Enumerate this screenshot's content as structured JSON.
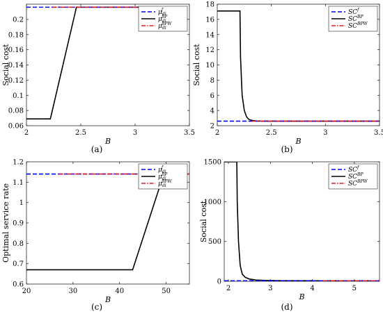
{
  "chart_data": [
    {
      "type": "line",
      "panel_label": "(a)",
      "xlabel": "B",
      "ylabel": "Social cost",
      "xlim": [
        2,
        3.5
      ],
      "ylim": [
        0.06,
        0.22
      ],
      "xticks": [
        2,
        2.5,
        3,
        3.5
      ],
      "yticks": [
        0.06,
        0.08,
        0.1,
        0.12,
        0.14,
        0.16,
        0.18,
        0.2
      ],
      "legend_position": "top-right",
      "series": [
        {
          "name": "μ_di^f",
          "label_base": "μ",
          "label_sub": "di",
          "label_sup": "f",
          "color": "#0000ff",
          "style": "dashed",
          "x": [
            2,
            3.45
          ],
          "y": [
            0.216,
            0.216
          ]
        },
        {
          "name": "μ_di^BP",
          "label_base": "μ",
          "label_sub": "di",
          "label_sup": "BP",
          "color": "#000000",
          "style": "solid",
          "x": [
            2,
            2.22,
            2.46,
            3.45
          ],
          "y": [
            0.069,
            0.069,
            0.216,
            0.216
          ]
        },
        {
          "name": "μ_di^BPW",
          "label_base": "μ",
          "label_sub": "di",
          "label_sup": "BPW",
          "color": "#e41a1c",
          "style": "dashdot",
          "x": [
            2.24,
            3.45
          ],
          "y": [
            0.216,
            0.216
          ]
        }
      ]
    },
    {
      "type": "line",
      "panel_label": "(b)",
      "xlabel": "B",
      "ylabel": "Social cost",
      "xlim": [
        2,
        3.5
      ],
      "ylim": [
        2,
        18
      ],
      "xticks": [
        2,
        2.5,
        3,
        3.5
      ],
      "yticks": [
        2,
        4,
        6,
        8,
        10,
        12,
        14,
        16,
        18
      ],
      "legend_position": "top-right",
      "series": [
        {
          "name": "SC^f",
          "label_base": "SC",
          "label_sub": "",
          "label_sup": "f",
          "color": "#0000ff",
          "style": "dashed",
          "x": [
            2,
            3.5
          ],
          "y": [
            2.6,
            2.6
          ]
        },
        {
          "name": "SC^BP",
          "label_base": "SC",
          "label_sub": "",
          "label_sup": "BP",
          "color": "#000000",
          "style": "solid",
          "x": [
            2,
            2.21,
            2.215,
            2.23,
            2.25,
            2.27,
            2.29,
            2.32,
            2.36,
            2.45,
            3.5
          ],
          "y": [
            17.1,
            17.1,
            11.0,
            6.0,
            4.0,
            3.2,
            2.85,
            2.7,
            2.62,
            2.6,
            2.6
          ]
        },
        {
          "name": "SC^BPW",
          "label_base": "SC",
          "label_sub": "",
          "label_sup": "BPW",
          "color": "#e41a1c",
          "style": "dashdot",
          "x": [
            2.32,
            3.5
          ],
          "y": [
            2.6,
            2.6
          ]
        }
      ]
    },
    {
      "type": "line",
      "panel_label": "(c)",
      "xlabel": "B",
      "ylabel": "Optimal service rate",
      "xlim": [
        20,
        55
      ],
      "ylim": [
        0.6,
        1.2
      ],
      "xticks": [
        20,
        30,
        40,
        50
      ],
      "yticks": [
        0.6,
        0.7,
        0.8,
        0.9,
        1,
        1.1,
        1.2
      ],
      "legend_position": "top-right",
      "series": [
        {
          "name": "μ_di^f",
          "label_base": "μ",
          "label_sub": "di",
          "label_sup": "f",
          "color": "#0000ff",
          "style": "dashed",
          "x": [
            20,
            55
          ],
          "y": [
            1.14,
            1.14
          ]
        },
        {
          "name": "μ_di^BP",
          "label_base": "μ",
          "label_sub": "di",
          "label_sup": "BP",
          "color": "#000000",
          "style": "solid",
          "x": [
            20,
            42.8,
            49.5,
            55
          ],
          "y": [
            0.67,
            0.67,
            1.14,
            1.14
          ]
        },
        {
          "name": "μ_di^BPW",
          "label_base": "μ",
          "label_sub": "di",
          "label_sup": "BPW",
          "color": "#e41a1c",
          "style": "dashdot",
          "x": [
            27,
            55
          ],
          "y": [
            1.14,
            1.14
          ]
        }
      ]
    },
    {
      "type": "line",
      "panel_label": "(d)",
      "xlabel": "B",
      "ylabel": "Social cost",
      "xlim": [
        1.9,
        5.6
      ],
      "ylim": [
        0,
        1500
      ],
      "xticks": [
        2,
        3,
        4,
        5
      ],
      "yticks": [
        0,
        500,
        1000,
        1500
      ],
      "legend_position": "top-right",
      "series": [
        {
          "name": "SC^f",
          "label_base": "SC",
          "label_sub": "",
          "label_sup": "f",
          "color": "#0000ff",
          "style": "dashed",
          "x": [
            1.9,
            5.6
          ],
          "y": [
            6,
            6
          ]
        },
        {
          "name": "SC^BP",
          "label_base": "SC",
          "label_sub": "",
          "label_sup": "BP",
          "color": "#000000",
          "style": "solid",
          "x": [
            1.9,
            2.2,
            2.21,
            2.24,
            2.28,
            2.33,
            2.4,
            2.5,
            2.65,
            2.9,
            3.3,
            5.6
          ],
          "y": [
            1500,
            1500,
            1000,
            500,
            200,
            90,
            50,
            28,
            16,
            10,
            7,
            6
          ]
        },
        {
          "name": "SC^BPW",
          "label_base": "SC",
          "label_sub": "",
          "label_sup": "BPW",
          "color": "#e41a1c",
          "style": "dashdot",
          "x": [
            4.25,
            5.6
          ],
          "y": [
            6,
            6
          ]
        }
      ]
    }
  ]
}
